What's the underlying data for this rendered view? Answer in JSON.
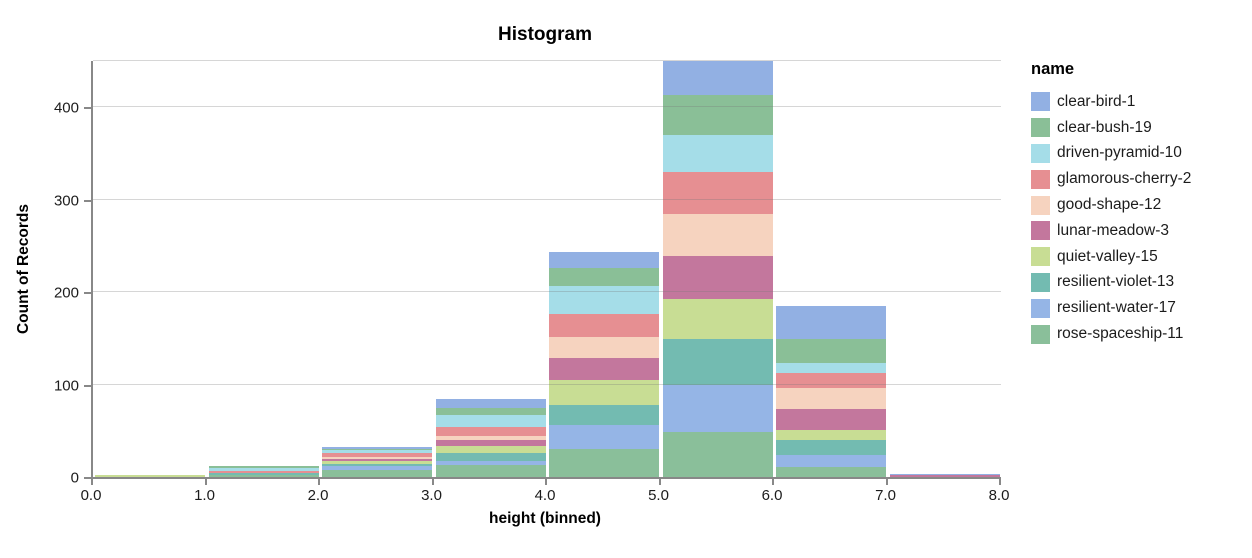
{
  "chart": {
    "title": "Histogram",
    "x_title": "height (binned)",
    "y_title": "Count of Records",
    "legend_title": "name",
    "axis_color": "#888888",
    "grid_color": "#d9d9d9",
    "label_color": "#1c1c1c",
    "title_color": "#000000"
  },
  "chart_data": {
    "type": "bar",
    "subtype": "stacked-histogram",
    "title": "Histogram",
    "xlabel": "height (binned)",
    "ylabel": "Count of Records",
    "legend_title": "name",
    "legend_position": "right",
    "grid": true,
    "bin_edges": [
      0,
      1,
      2,
      3,
      4,
      5,
      6,
      7,
      8
    ],
    "x_tick_labels": [
      "0.0",
      "1.0",
      "2.0",
      "3.0",
      "4.0",
      "5.0",
      "6.0",
      "7.0",
      "8.0"
    ],
    "y_ticks": [
      0,
      100,
      200,
      300,
      400
    ],
    "ylim": [
      0,
      450
    ],
    "bin_totals": [
      2,
      12,
      33,
      84,
      243,
      450,
      185,
      3
    ],
    "series": [
      {
        "name": "clear-bird-1",
        "color": "#92b0e3",
        "counts": [
          0,
          0,
          3,
          9,
          17,
          37,
          36,
          1
        ]
      },
      {
        "name": "clear-bush-19",
        "color": "#8abf97",
        "counts": [
          0,
          2,
          1,
          8,
          19,
          43,
          26,
          0
        ]
      },
      {
        "name": "driven-pyramid-10",
        "color": "#a5dde8",
        "counts": [
          0,
          3,
          3,
          13,
          31,
          40,
          10,
          0
        ]
      },
      {
        "name": "glamorous-cherry-2",
        "color": "#e68f92",
        "counts": [
          0,
          3,
          4,
          10,
          25,
          45,
          17,
          0
        ]
      },
      {
        "name": "good-shape-12",
        "color": "#f6d3bf",
        "counts": [
          0,
          0,
          3,
          4,
          22,
          46,
          23,
          0
        ]
      },
      {
        "name": "lunar-meadow-3",
        "color": "#c3779d",
        "counts": [
          0,
          0,
          2,
          6,
          24,
          46,
          22,
          2
        ]
      },
      {
        "name": "quiet-valley-15",
        "color": "#c8dd94",
        "counts": [
          2,
          0,
          3,
          8,
          27,
          44,
          11,
          0
        ]
      },
      {
        "name": "resilient-violet-13",
        "color": "#73bbb1",
        "counts": [
          0,
          2,
          2,
          9,
          22,
          49,
          16,
          0
        ]
      },
      {
        "name": "resilient-water-17",
        "color": "#95b5e6",
        "counts": [
          0,
          0,
          4,
          4,
          26,
          51,
          13,
          0
        ]
      },
      {
        "name": "rose-spaceship-11",
        "color": "#8abf9a",
        "counts": [
          0,
          2,
          8,
          13,
          30,
          49,
          11,
          0
        ]
      }
    ]
  }
}
